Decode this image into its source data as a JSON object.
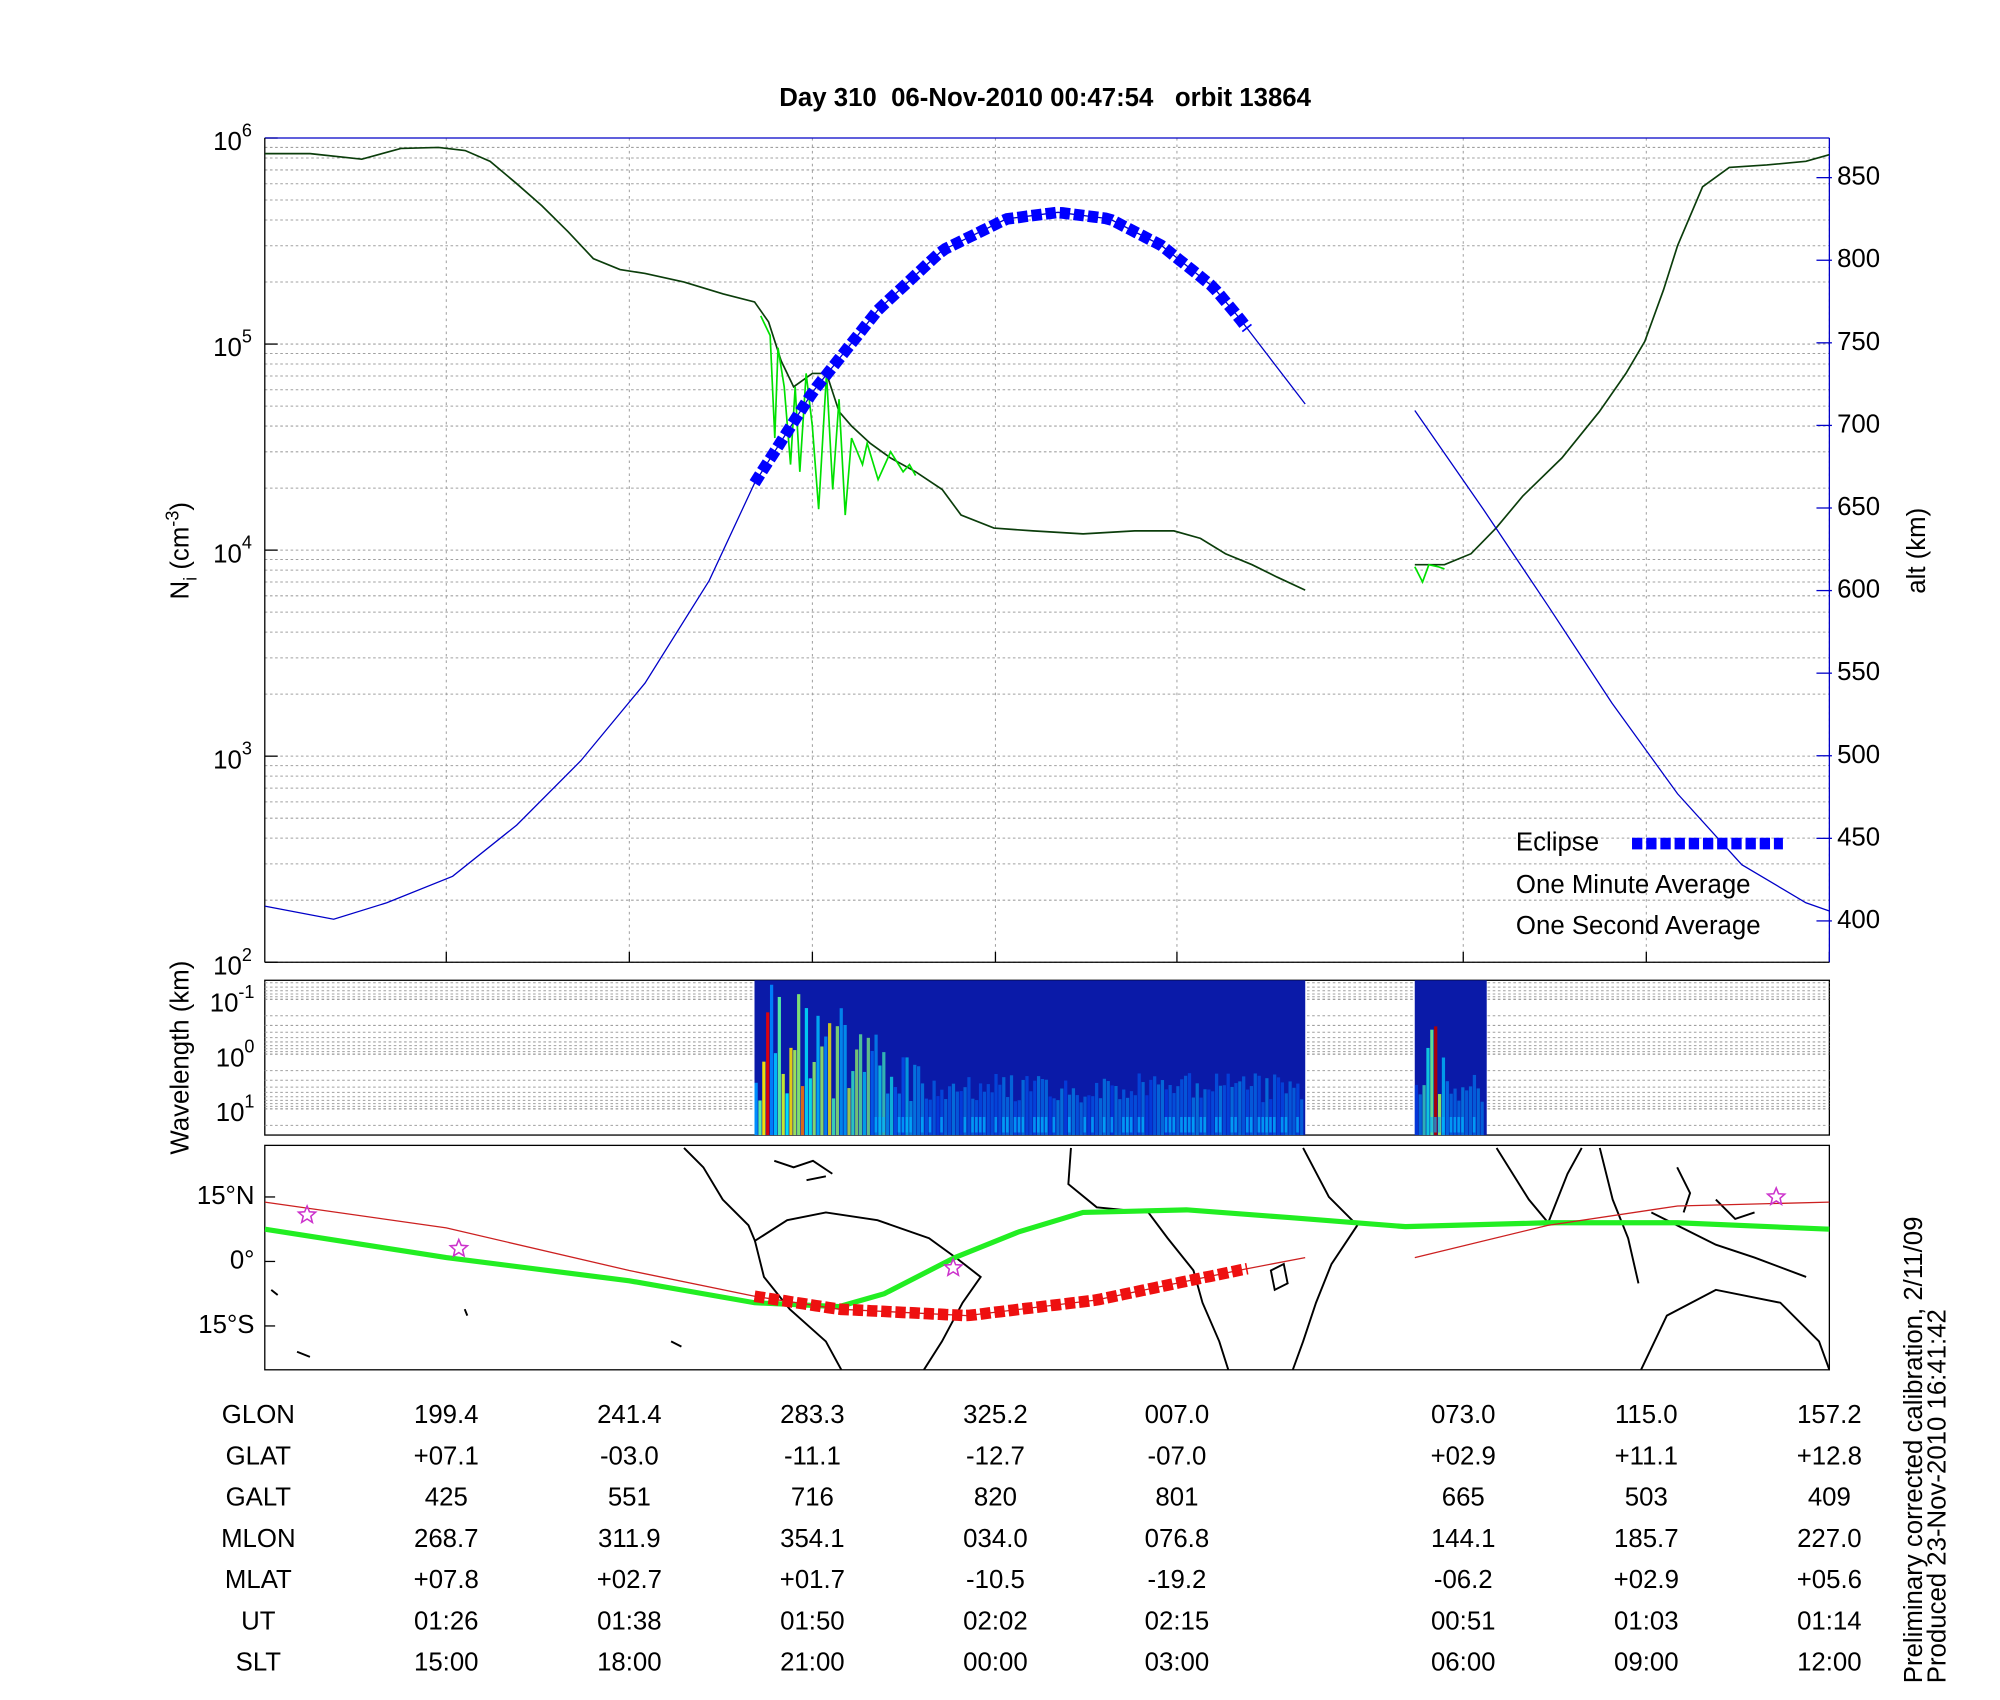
{
  "chart_data": [
    {
      "type": "line",
      "title": "Day 310  06-Nov-2010 00:47:54   orbit 13864",
      "ylabel": {
        "base": "N",
        "sub": "i",
        "unit": " (cm",
        "exponent": "-3",
        "close": ")"
      },
      "y2label": "alt (km)",
      "xlim": [
        0,
        100
      ],
      "xgrid": [
        11.6,
        23.3,
        35.0,
        46.7,
        58.3,
        76.6,
        88.3,
        100
      ],
      "yscale": "log",
      "ylim": [
        100,
        1000000
      ],
      "yticks": [
        {
          "value": 100,
          "label": "10",
          "exponent": "2"
        },
        {
          "value": 1000,
          "label": "10",
          "exponent": "3"
        },
        {
          "value": 10000,
          "label": "10",
          "exponent": "4"
        },
        {
          "value": 100000,
          "label": "10",
          "exponent": "5"
        },
        {
          "value": 1000000,
          "label": "10",
          "exponent": "6"
        }
      ],
      "y2lim": [
        375,
        874
      ],
      "y2ticks": [
        400,
        450,
        500,
        550,
        600,
        650,
        700,
        750,
        800,
        850
      ],
      "grid": true,
      "legend": "lower right",
      "series": [
        {
          "name": "One Minute Average",
          "color": "#0b3d0b",
          "x": [
            0,
            2.9,
            6.2,
            8.7,
            11.1,
            12.8,
            14.4,
            16.1,
            17.7,
            19.4,
            21.0,
            22.7,
            24.3,
            26.8,
            29.3,
            31.3,
            32.2,
            33.0,
            33.8,
            35.0,
            35.9,
            36.7,
            37.5,
            38.7,
            40.0,
            41.6,
            43.3,
            44.5,
            46.6,
            49.1,
            52.3,
            55.6,
            58.1,
            59.8,
            61.4,
            63.1,
            64.7,
            66.5,
            70,
            73.5,
            75.4,
            77.1,
            78.7,
            80.4,
            82.9,
            85.3,
            87.0,
            88.2,
            89.4,
            90.3,
            91.9,
            93.6,
            96.0,
            98.5,
            100
          ],
          "values": [
            840000,
            840000,
            790000,
            890000,
            900000,
            870000,
            770000,
            600000,
            470000,
            350000,
            260000,
            230000,
            220000,
            200000,
            175000,
            160000,
            128000,
            83000,
            62000,
            72000,
            72000,
            47000,
            40000,
            33000,
            28000,
            24000,
            19700,
            14800,
            12800,
            12400,
            12000,
            12400,
            12400,
            11400,
            9600,
            8500,
            7400,
            6400,
            null,
            8500,
            8500,
            9600,
            12800,
            18300,
            28000,
            47000,
            72000,
            103000,
            183000,
            300000,
            580000,
            720000,
            740000,
            770000,
            830000
          ]
        },
        {
          "name": "One Second Average",
          "color": "#00e000",
          "x": [
            31.7,
            32.3,
            32.6,
            32.8,
            33.2,
            33.6,
            33.9,
            34.2,
            34.6,
            35.0,
            35.4,
            35.9,
            36.3,
            36.7,
            37.1,
            37.5,
            38.2,
            38.5,
            39.2,
            40.0,
            40.8,
            41.2,
            41.6,
            55,
            73.5,
            74.0,
            74.4,
            75.0,
            75.4
          ],
          "values": [
            137000,
            110000,
            35000,
            96000,
            62000,
            26000,
            62000,
            24000,
            72000,
            40000,
            15800,
            72000,
            19700,
            54000,
            14800,
            35000,
            26000,
            33000,
            22000,
            30000,
            24000,
            26000,
            23000,
            null,
            8300,
            7000,
            8500,
            8300,
            8100
          ]
        },
        {
          "axis": "y2",
          "color": "#0000c8",
          "x": [
            0,
            4.4,
            7.8,
            12.0,
            16.1,
            20.2,
            24.3,
            28.4,
            31.3,
            35.0,
            39.2,
            43.3,
            47.4,
            50.7,
            54.0,
            57.3,
            60.6,
            62.2,
            66.5,
            70,
            73.5,
            77.9,
            82.0,
            86.1,
            90.3,
            94.4,
            98.5,
            100
          ],
          "values": [
            409,
            401,
            411,
            427,
            458,
            497,
            544,
            606,
            665,
            720,
            770,
            806,
            825,
            829,
            825,
            809,
            784,
            766,
            713,
            null,
            709,
            649,
            591,
            532,
            477,
            434,
            411,
            406
          ]
        }
      ],
      "eclipse": {
        "name": "Eclipse",
        "start": 31.3,
        "end": 62.8,
        "color": "#0000ff"
      }
    },
    {
      "type": "spectrogram",
      "ylabel": "Wavelength (km)",
      "yscale": "log",
      "ylim": [
        0.045,
        30
      ],
      "yticks": [
        {
          "value": 0.1,
          "label": "10",
          "exponent": "-1"
        },
        {
          "value": 1,
          "label": "10",
          "exponent": "0"
        },
        {
          "value": 10,
          "label": "10",
          "exponent": "1"
        }
      ],
      "segments": [
        [
          31.3,
          66.5
        ],
        [
          73.5,
          78.1
        ]
      ]
    },
    {
      "type": "map",
      "ylim": [
        -25.2,
        27
      ],
      "yticks": [
        {
          "value": 15,
          "label": "15°N"
        },
        {
          "value": 0,
          "label": "0°"
        },
        {
          "value": -15,
          "label": "15°S"
        }
      ],
      "series": [
        {
          "color": "#22ee22",
          "x": [
            0,
            11.6,
            23.3,
            31.3,
            36.7,
            39.6,
            44.1,
            48.2,
            52.3,
            58.9,
            65.5,
            72.9,
            82.0,
            90.3,
            100
          ],
          "values": [
            7.5,
            0.9,
            -4.5,
            -9.6,
            -10.5,
            -7.5,
            0.9,
            6.9,
            11.4,
            12.0,
            10.2,
            8.1,
            9.0,
            9.0,
            7.5
          ]
        },
        {
          "color": "#cc2020",
          "x": [
            0,
            11.6,
            23.3,
            31.3,
            36.7,
            44.9,
            53.1,
            62.2,
            66.5,
            70,
            73.5,
            82.0,
            90.3,
            100
          ],
          "values": [
            13.8,
            7.8,
            -2.1,
            -8.1,
            -11.1,
            -12.6,
            -9.0,
            -2.1,
            0.9,
            null,
            0.9,
            8.4,
            12.9,
            13.8
          ]
        }
      ],
      "eclipse_color": "#ee1010",
      "markers": {
        "color": "#cc33cc",
        "x": [
          2.7,
          12.4,
          44.0,
          96.6
        ],
        "values": [
          10.8,
          3.0,
          -1.5,
          15.0
        ]
      }
    }
  ],
  "table": {
    "rows": [
      {
        "label": "GLON",
        "cells": [
          "199.4",
          "241.4",
          "283.3",
          "325.2",
          "007.0",
          "073.0",
          "115.0",
          "157.2"
        ]
      },
      {
        "label": "GLAT",
        "cells": [
          "+07.1",
          "-03.0",
          "-11.1",
          "-12.7",
          "-07.0",
          "+02.9",
          "+11.1",
          "+12.8"
        ]
      },
      {
        "label": "GALT",
        "cells": [
          "425",
          "551",
          "716",
          "820",
          "801",
          "665",
          "503",
          "409"
        ]
      },
      {
        "label": "MLON",
        "cells": [
          "268.7",
          "311.9",
          "354.1",
          "034.0",
          "076.8",
          "144.1",
          "185.7",
          "227.0"
        ]
      },
      {
        "label": "MLAT",
        "cells": [
          "+07.8",
          "+02.7",
          "+01.7",
          "-10.5",
          "-19.2",
          "-06.2",
          "+02.9",
          "+05.6"
        ]
      },
      {
        "label": "UT",
        "cells": [
          "01:26",
          "01:38",
          "01:50",
          "02:02",
          "02:15",
          "00:51",
          "01:03",
          "01:14"
        ]
      },
      {
        "label": "SLT",
        "cells": [
          "15:00",
          "18:00",
          "21:00",
          "00:00",
          "03:00",
          "06:00",
          "09:00",
          "12:00"
        ]
      }
    ]
  },
  "footer": [
    "Preliminary corrected calibration, 2/11/09",
    "Produced 23-Nov-2010 16:41:42"
  ]
}
